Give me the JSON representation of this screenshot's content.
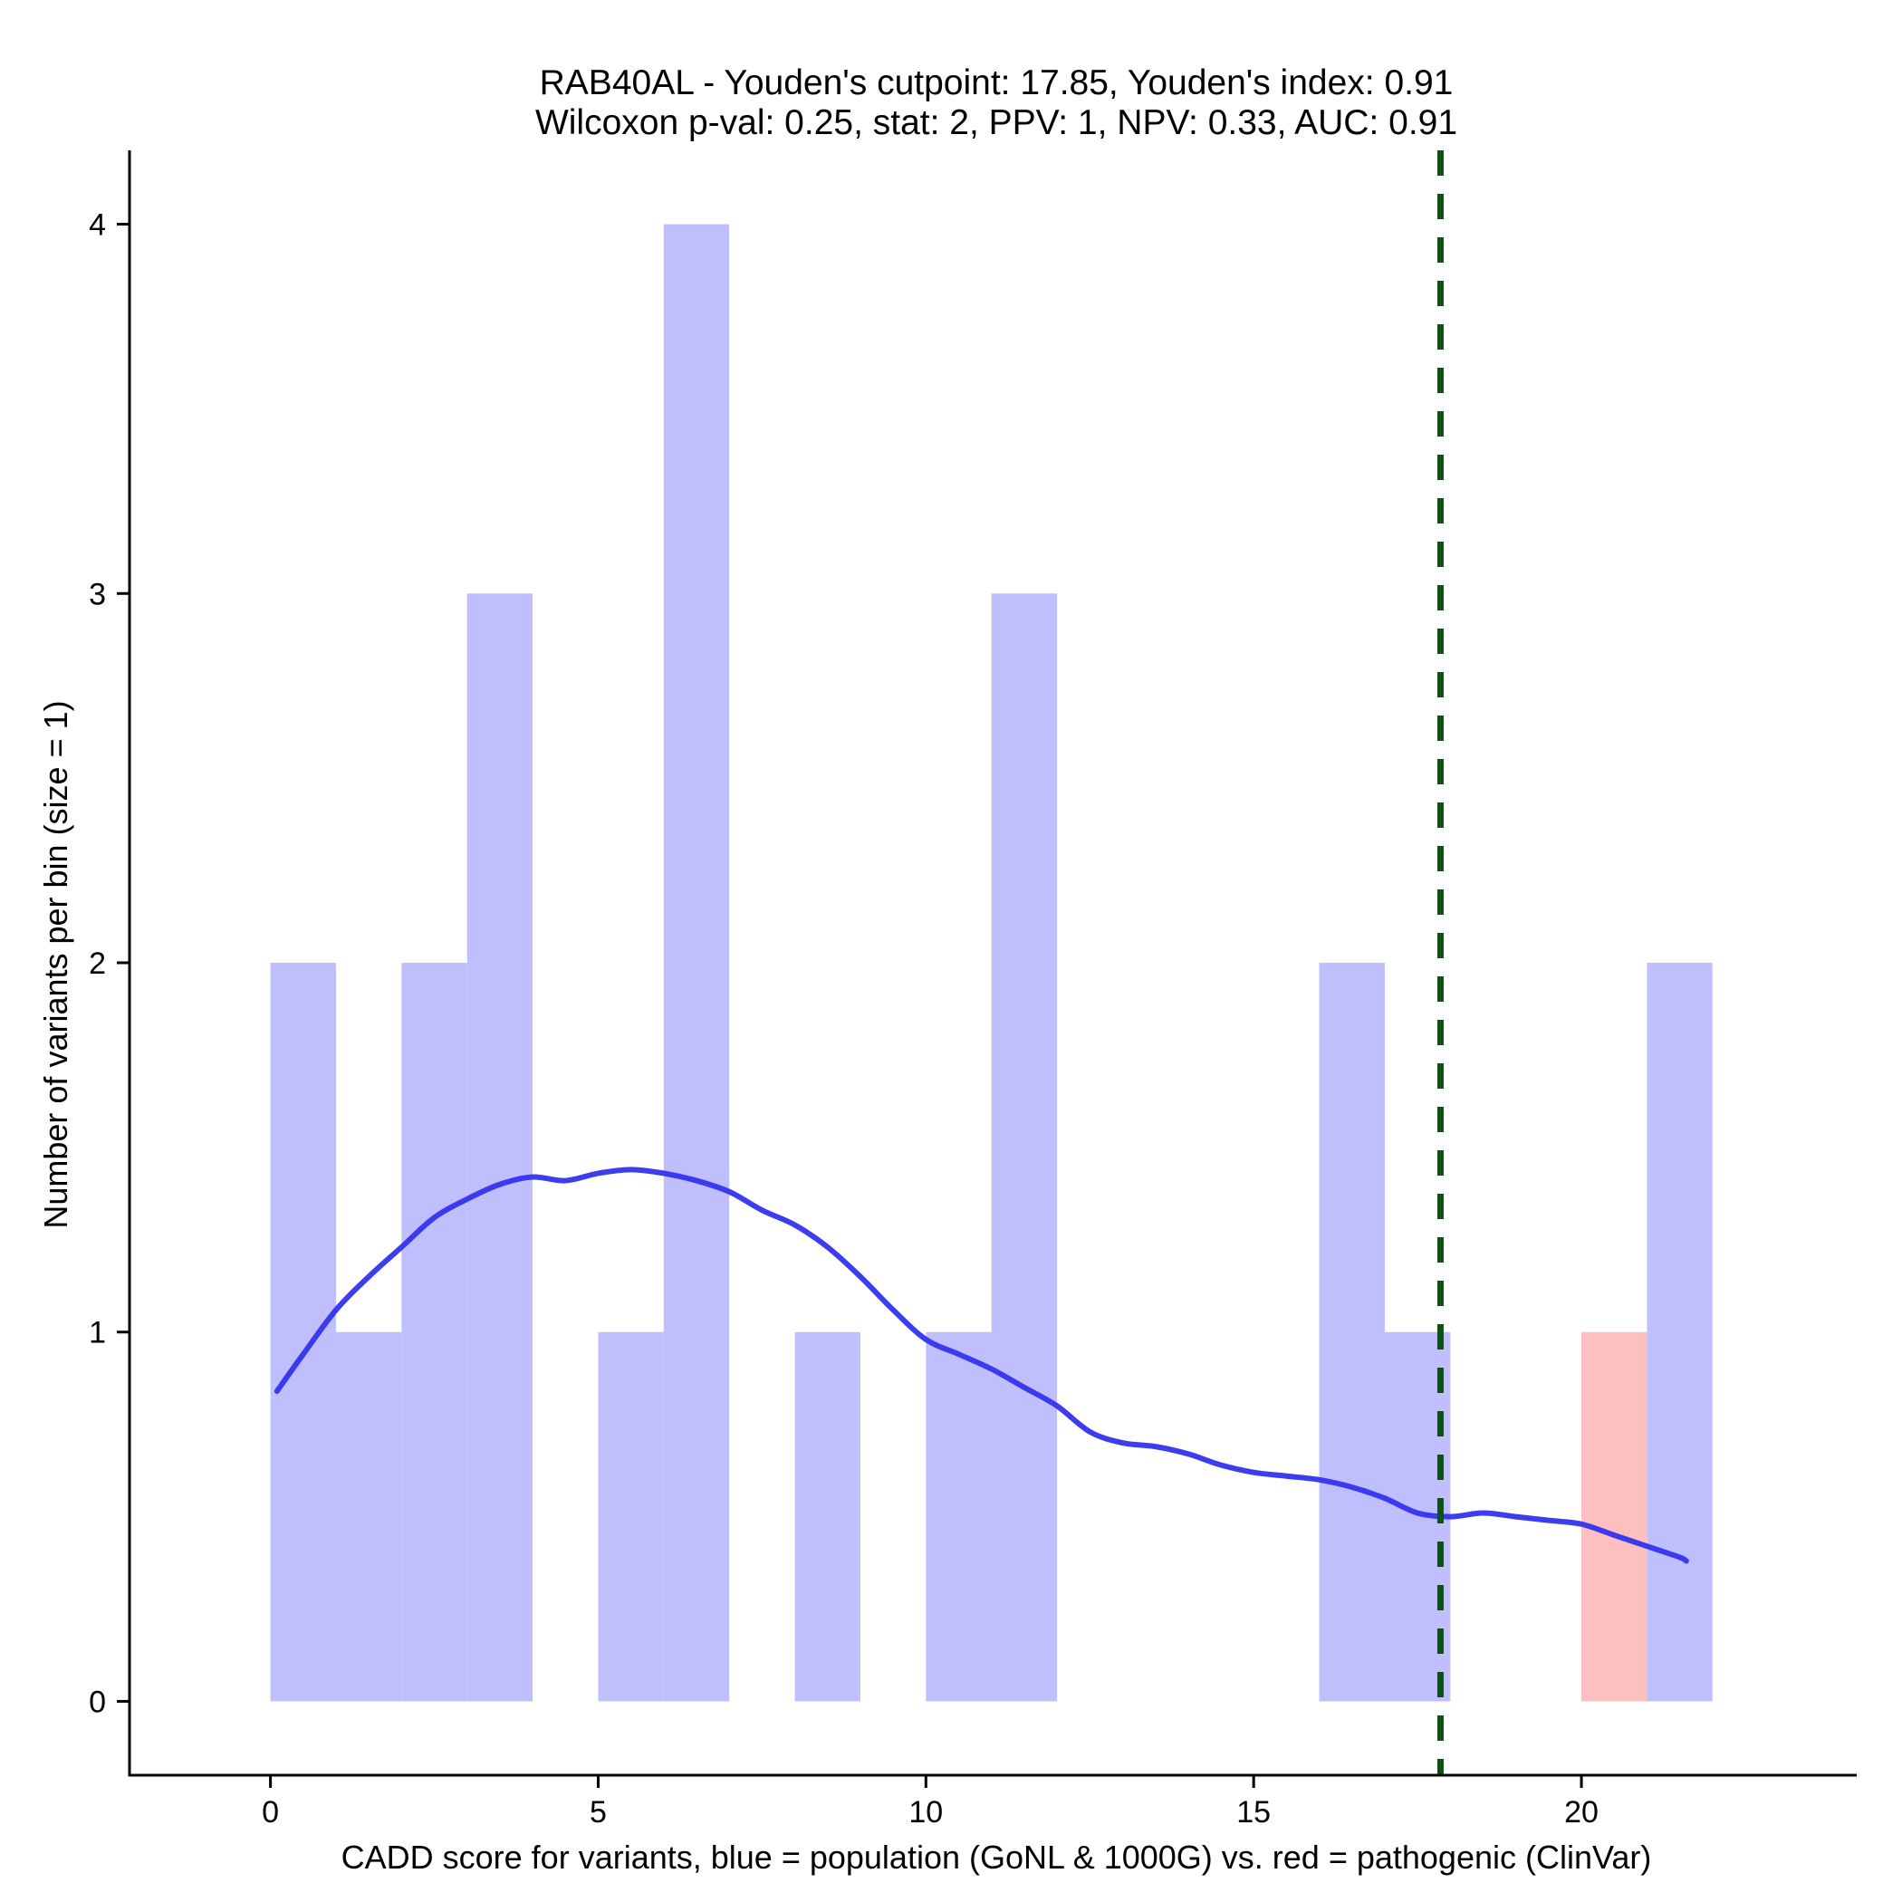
{
  "chart_data": {
    "type": "bar",
    "title_line1": "RAB40AL - Youden's cutpoint: 17.85, Youden's index: 0.91",
    "title_line2": "Wilcoxon p-val: 0.25, stat: 2, PPV: 1, NPV: 0.33, AUC: 0.91",
    "xlabel": "CADD score for variants, blue = population (GoNL & 1000G) vs. red = pathogenic (ClinVar)",
    "ylabel": "Number of variants per bin (size = 1)",
    "xlim": [
      -2.15,
      24.2
    ],
    "ylim": [
      -0.2,
      4.2
    ],
    "x_ticks": [
      0,
      5,
      10,
      15,
      20
    ],
    "y_ticks": [
      0,
      1,
      2,
      3,
      4
    ],
    "bin_size": 1,
    "series": [
      {
        "name": "population (GoNL & 1000G)",
        "color": "#bfbffd",
        "bins": [
          {
            "start": 0,
            "count": 2
          },
          {
            "start": 1,
            "count": 1
          },
          {
            "start": 2,
            "count": 2
          },
          {
            "start": 3,
            "count": 3
          },
          {
            "start": 5,
            "count": 1
          },
          {
            "start": 6,
            "count": 4
          },
          {
            "start": 8,
            "count": 1
          },
          {
            "start": 10,
            "count": 1
          },
          {
            "start": 11,
            "count": 3
          },
          {
            "start": 16,
            "count": 2
          },
          {
            "start": 17,
            "count": 1
          },
          {
            "start": 21,
            "count": 2
          }
        ]
      },
      {
        "name": "pathogenic (ClinVar)",
        "color": "#fdbfbf",
        "bins": [
          {
            "start": 20,
            "count": 1
          }
        ]
      }
    ],
    "density_curve": {
      "name": "population density",
      "color": "#3333ee",
      "points": [
        [
          0.1,
          0.84
        ],
        [
          0.5,
          0.94
        ],
        [
          1.0,
          1.06
        ],
        [
          1.5,
          1.15
        ],
        [
          2.0,
          1.23
        ],
        [
          2.5,
          1.31
        ],
        [
          3.0,
          1.36
        ],
        [
          3.5,
          1.4
        ],
        [
          4.0,
          1.42
        ],
        [
          4.5,
          1.41
        ],
        [
          5.0,
          1.43
        ],
        [
          5.5,
          1.44
        ],
        [
          6.0,
          1.43
        ],
        [
          6.5,
          1.41
        ],
        [
          7.0,
          1.38
        ],
        [
          7.5,
          1.33
        ],
        [
          8.0,
          1.29
        ],
        [
          8.5,
          1.23
        ],
        [
          9.0,
          1.15
        ],
        [
          9.5,
          1.06
        ],
        [
          10.0,
          0.98
        ],
        [
          10.5,
          0.94
        ],
        [
          11.0,
          0.9
        ],
        [
          11.5,
          0.85
        ],
        [
          12.0,
          0.8
        ],
        [
          12.5,
          0.73
        ],
        [
          13.0,
          0.7
        ],
        [
          13.5,
          0.69
        ],
        [
          14.0,
          0.67
        ],
        [
          14.5,
          0.64
        ],
        [
          15.0,
          0.62
        ],
        [
          15.5,
          0.61
        ],
        [
          16.0,
          0.6
        ],
        [
          16.5,
          0.58
        ],
        [
          17.0,
          0.55
        ],
        [
          17.5,
          0.51
        ],
        [
          18.0,
          0.5
        ],
        [
          18.5,
          0.51
        ],
        [
          19.0,
          0.5
        ],
        [
          19.5,
          0.49
        ],
        [
          20.0,
          0.48
        ],
        [
          20.5,
          0.45
        ],
        [
          21.0,
          0.42
        ],
        [
          21.5,
          0.39
        ],
        [
          21.6,
          0.38
        ]
      ]
    },
    "cutpoint": {
      "label": "Youden's cutpoint",
      "x": 17.85,
      "color": "#0d520d"
    }
  }
}
